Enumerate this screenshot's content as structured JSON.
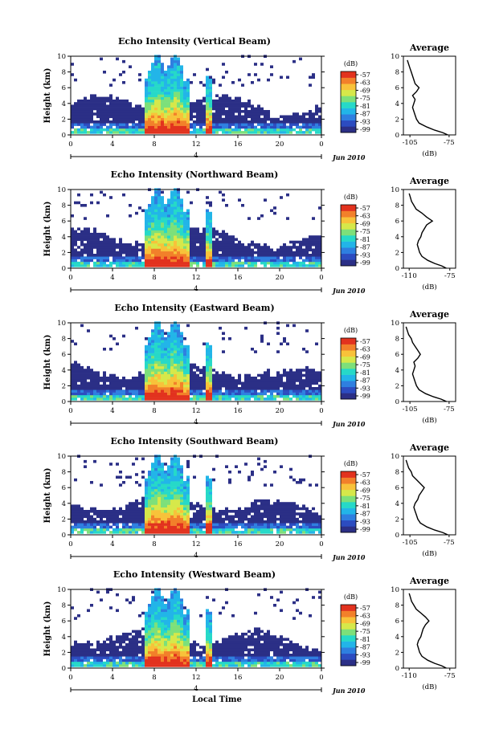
{
  "figure": {
    "xlabel": "Local Time"
  },
  "chart_data": [
    {
      "type": "heatmap",
      "beam": "vertical",
      "title": "Echo Intensity (Vertical Beam)",
      "ylabel": "Height (km)",
      "x_ticks": [
        "0",
        "4",
        "8",
        "12",
        "16",
        "20",
        "0"
      ],
      "x_range": [
        0,
        24
      ],
      "y_ticks": [
        "0",
        "2",
        "4",
        "6",
        "8",
        "10"
      ],
      "y_range": [
        0,
        10
      ],
      "day_marker": "4",
      "date_label": "Jun 2010",
      "colorbar_unit": "(dB)",
      "colorbar_ticks": [
        "-57",
        "-63",
        "-69",
        "-75",
        "-81",
        "-87",
        "-93",
        "-99"
      ],
      "convective_cores_hour": [
        8.3,
        10.0,
        13.2
      ],
      "average": {
        "title": "Average",
        "xlabel": "(dB)",
        "x_ticks": [
          "-105",
          "-75"
        ],
        "x_range": [
          -110,
          -70
        ],
        "y_ticks": [
          "0",
          "2",
          "4",
          "6",
          "8",
          "10"
        ],
        "height_km": [
          0,
          0.3,
          0.6,
          1,
          1.5,
          2,
          2.5,
          3,
          3.5,
          4,
          4.5,
          5,
          5.5,
          6,
          6.5,
          7,
          7.5,
          8,
          8.5,
          9,
          9.5
        ],
        "db": [
          -76,
          -80,
          -86,
          -92,
          -98,
          -100,
          -101,
          -102,
          -103,
          -102,
          -101,
          -103,
          -100,
          -98,
          -101,
          -102,
          -103,
          -104,
          -105,
          -106,
          -107
        ]
      }
    },
    {
      "type": "heatmap",
      "beam": "northward",
      "title": "Echo Intensity (Northward Beam)",
      "ylabel": "Height (km)",
      "x_ticks": [
        "0",
        "4",
        "8",
        "12",
        "16",
        "20",
        "0"
      ],
      "x_range": [
        0,
        24
      ],
      "y_ticks": [
        "0",
        "2",
        "4",
        "6",
        "8",
        "10"
      ],
      "y_range": [
        0,
        10
      ],
      "day_marker": "4",
      "date_label": "Jun 2010",
      "colorbar_unit": "(dB)",
      "colorbar_ticks": [
        "-57",
        "-63",
        "-69",
        "-75",
        "-81",
        "-87",
        "-93",
        "-99"
      ],
      "convective_cores_hour": [
        8.3,
        10.0,
        13.2
      ],
      "average": {
        "title": "Average",
        "xlabel": "(dB)",
        "x_ticks": [
          "-110",
          "-75"
        ],
        "x_range": [
          -115,
          -70
        ],
        "y_ticks": [
          "0",
          "2",
          "4",
          "6",
          "8",
          "10"
        ],
        "height_km": [
          0,
          0.3,
          0.6,
          1,
          1.5,
          2,
          2.5,
          3,
          3.5,
          4,
          4.5,
          5,
          5.5,
          6,
          6.5,
          7,
          7.5,
          8,
          8.5,
          9,
          9.5
        ],
        "db": [
          -78,
          -82,
          -88,
          -94,
          -99,
          -101,
          -102,
          -103,
          -102,
          -100,
          -99,
          -97,
          -95,
          -90,
          -95,
          -99,
          -104,
          -106,
          -108,
          -109,
          -110
        ]
      }
    },
    {
      "type": "heatmap",
      "beam": "eastward",
      "title": "Echo Intensity (Eastward Beam)",
      "ylabel": "Height (km)",
      "x_ticks": [
        "0",
        "4",
        "8",
        "12",
        "16",
        "20",
        "0"
      ],
      "x_range": [
        0,
        24
      ],
      "y_ticks": [
        "0",
        "2",
        "4",
        "6",
        "8",
        "10"
      ],
      "y_range": [
        0,
        10
      ],
      "day_marker": "4",
      "date_label": "Jun 2010",
      "colorbar_unit": "(dB)",
      "colorbar_ticks": [
        "-57",
        "-63",
        "-69",
        "-75",
        "-81",
        "-87",
        "-93",
        "-99"
      ],
      "convective_cores_hour": [
        8.3,
        10.0,
        13.2
      ],
      "average": {
        "title": "Average",
        "xlabel": "(dB)",
        "x_ticks": [
          "-105",
          "-75"
        ],
        "x_range": [
          -110,
          -70
        ],
        "y_ticks": [
          "0",
          "2",
          "4",
          "6",
          "8",
          "10"
        ],
        "height_km": [
          0,
          0.3,
          0.6,
          1,
          1.5,
          2,
          2.5,
          3,
          3.5,
          4,
          4.5,
          5,
          5.5,
          6,
          6.5,
          7,
          7.5,
          8,
          8.5,
          9,
          9.5
        ],
        "db": [
          -77,
          -81,
          -87,
          -93,
          -98,
          -100,
          -101,
          -102,
          -103,
          -102,
          -101,
          -102,
          -99,
          -97,
          -99,
          -101,
          -103,
          -104,
          -106,
          -107,
          -108
        ]
      }
    },
    {
      "type": "heatmap",
      "beam": "southward",
      "title": "Echo Intensity (Southward Beam)",
      "ylabel": "Height (km)",
      "x_ticks": [
        "0",
        "4",
        "8",
        "12",
        "16",
        "20",
        "0"
      ],
      "x_range": [
        0,
        24
      ],
      "y_ticks": [
        "0",
        "2",
        "4",
        "6",
        "8",
        "10"
      ],
      "y_range": [
        0,
        10
      ],
      "day_marker": "4",
      "date_label": "Jun 2010",
      "colorbar_unit": "(dB)",
      "colorbar_ticks": [
        "-57",
        "-63",
        "-69",
        "-75",
        "-81",
        "-87",
        "-93",
        "-99"
      ],
      "convective_cores_hour": [
        8.3,
        10.0,
        13.2
      ],
      "average": {
        "title": "Average",
        "xlabel": "(dB)",
        "x_ticks": [
          "-105",
          "-75"
        ],
        "x_range": [
          -110,
          -70
        ],
        "y_ticks": [
          "0",
          "2",
          "4",
          "6",
          "8",
          "10"
        ],
        "height_km": [
          0,
          0.3,
          0.6,
          1,
          1.5,
          2,
          2.5,
          3,
          3.5,
          4,
          4.5,
          5,
          5.5,
          6,
          6.5,
          7,
          7.5,
          8,
          8.5,
          9,
          9.5
        ],
        "db": [
          -76,
          -80,
          -86,
          -92,
          -97,
          -99,
          -100,
          -101,
          -102,
          -101,
          -99,
          -98,
          -96,
          -94,
          -97,
          -100,
          -103,
          -104,
          -106,
          -107,
          -108
        ]
      }
    },
    {
      "type": "heatmap",
      "beam": "westward",
      "title": "Echo Intensity (Westward Beam)",
      "ylabel": "Height (km)",
      "x_ticks": [
        "0",
        "4",
        "8",
        "12",
        "16",
        "20",
        "0"
      ],
      "x_range": [
        0,
        24
      ],
      "y_ticks": [
        "0",
        "2",
        "4",
        "6",
        "8",
        "10"
      ],
      "y_range": [
        0,
        10
      ],
      "day_marker": "4",
      "date_label": "Jun 2010",
      "colorbar_unit": "(dB)",
      "colorbar_ticks": [
        "-57",
        "-63",
        "-69",
        "-75",
        "-81",
        "-87",
        "-93",
        "-99"
      ],
      "convective_cores_hour": [
        8.3,
        10.0,
        13.2
      ],
      "average": {
        "title": "Average",
        "xlabel": "(dB)",
        "x_ticks": [
          "-110",
          "-75"
        ],
        "x_range": [
          -115,
          -70
        ],
        "y_ticks": [
          "0",
          "2",
          "4",
          "6",
          "8",
          "10"
        ],
        "height_km": [
          0,
          0.3,
          0.6,
          1,
          1.5,
          2,
          2.5,
          3,
          3.5,
          4,
          4.5,
          5,
          5.5,
          6,
          6.5,
          7,
          7.5,
          8,
          8.5,
          9,
          9.5
        ],
        "db": [
          -78,
          -82,
          -88,
          -94,
          -99,
          -101,
          -102,
          -103,
          -102,
          -100,
          -99,
          -98,
          -96,
          -93,
          -96,
          -100,
          -104,
          -106,
          -108,
          -109,
          -110
        ]
      }
    }
  ],
  "colormap": [
    "#2b2f86",
    "#2c4cc0",
    "#2e7fe0",
    "#22b5e8",
    "#26d9c8",
    "#7de07a",
    "#d6e84a",
    "#f8c23a",
    "#f2802a",
    "#e2321e"
  ]
}
